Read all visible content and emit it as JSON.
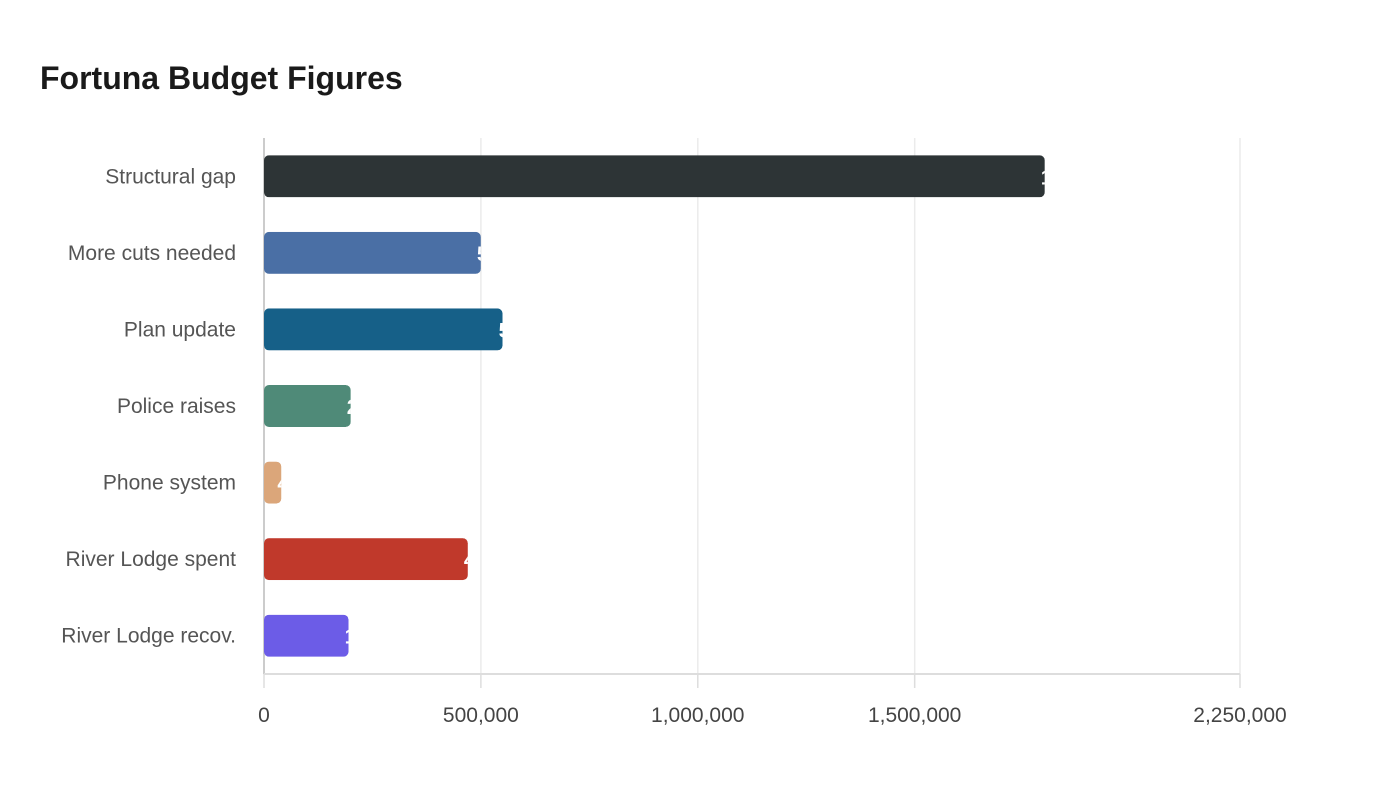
{
  "title": "Fortuna Budget Figures",
  "chart_data": {
    "type": "bar",
    "orientation": "horizontal",
    "title": "Fortuna Budget Figures",
    "xlabel": "",
    "ylabel": "",
    "categories": [
      "Structural gap",
      "More cuts needed",
      "Plan update",
      "Police raises",
      "Phone system",
      "River Lodge spent",
      "River Lodge recov."
    ],
    "values": [
      1800000,
      500000,
      550000,
      200000,
      40000,
      470000,
      195000
    ],
    "colors": [
      "#2d3436",
      "#4a6fa5",
      "#166088",
      "#4f8a78",
      "#dba67a",
      "#c0392b",
      "#6c5ce7"
    ],
    "xlim": [
      0,
      2250000
    ],
    "x_ticks": [
      0,
      500000,
      1000000,
      1500000,
      2250000
    ],
    "x_tick_labels": [
      "0",
      "500,000",
      "1,000,000",
      "1,500,000",
      "2,250,000"
    ],
    "grid": true,
    "legend": "none"
  }
}
